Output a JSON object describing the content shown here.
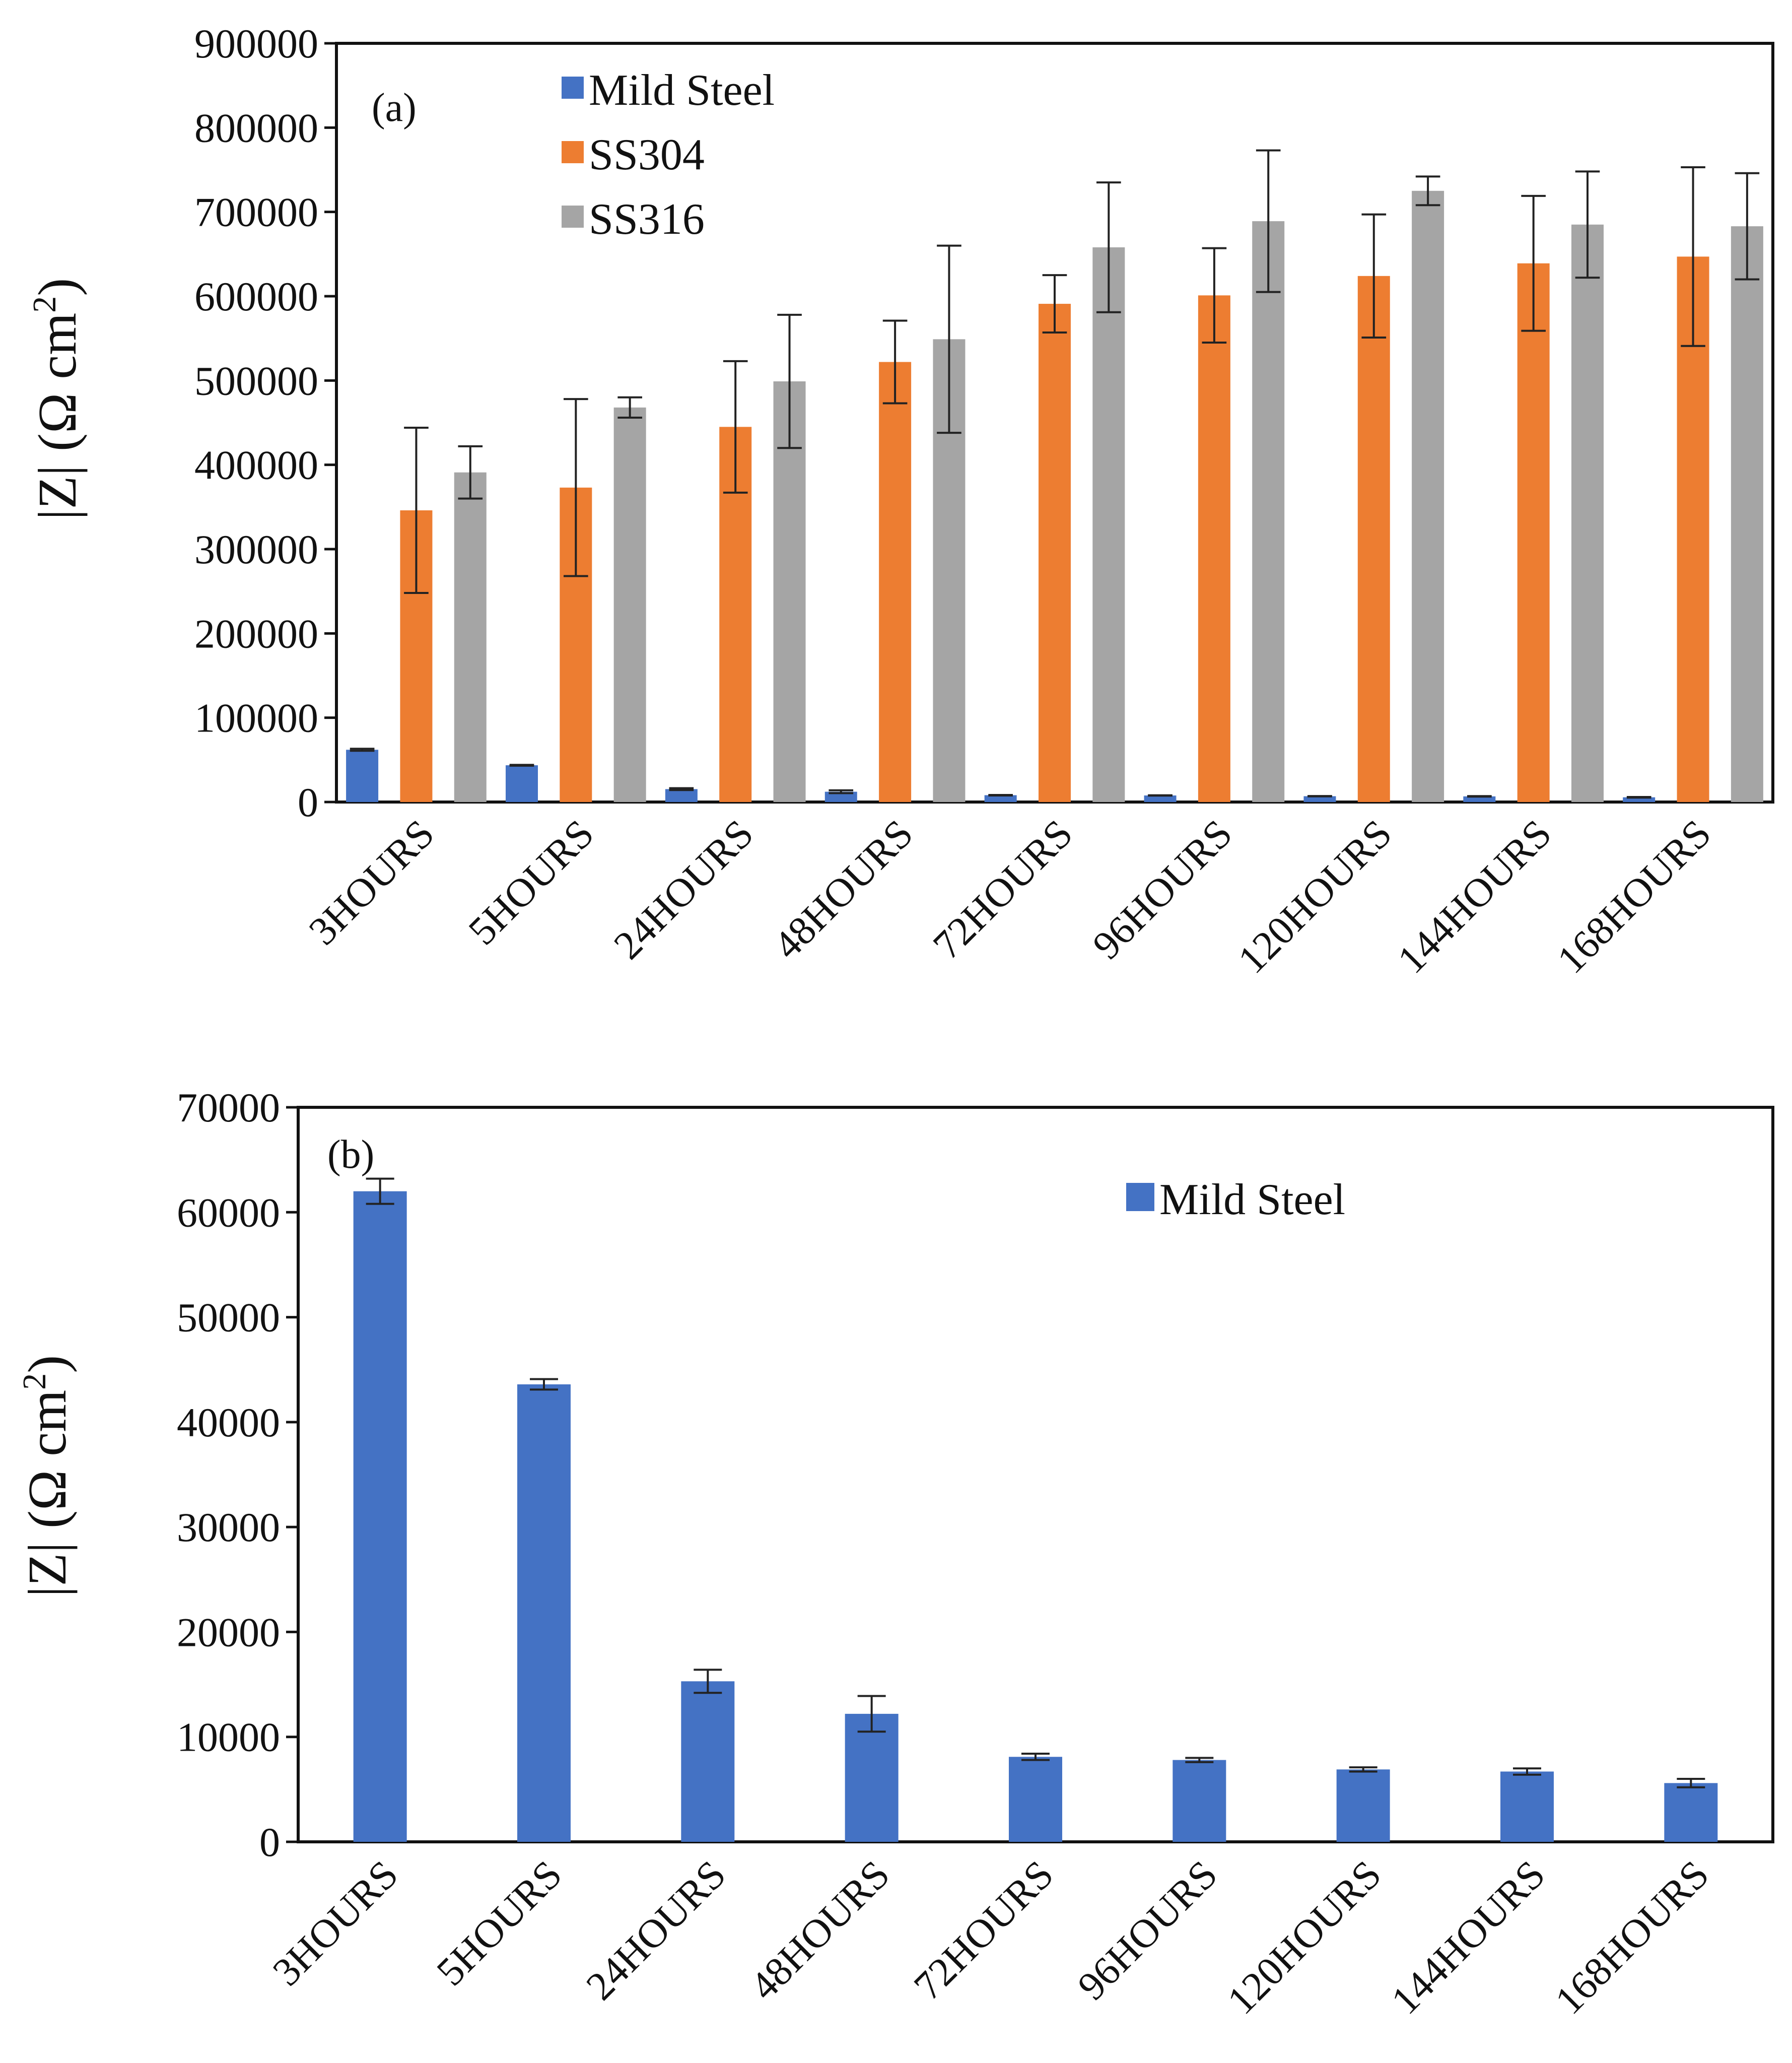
{
  "chart_data": [
    {
      "type": "bar",
      "panel_label": "(a)",
      "title": "",
      "xlabel": "",
      "ylabel": "|Z| (Ω cm²)",
      "ylabel_parts": {
        "pre": "|Z| (Ω cm",
        "sup": "2",
        "post": ")"
      },
      "ylim": [
        0,
        900000
      ],
      "yticks": [
        0,
        100000,
        200000,
        300000,
        400000,
        500000,
        600000,
        700000,
        800000,
        900000
      ],
      "ytick_labels": [
        "0",
        "100000",
        "200000",
        "300000",
        "400000",
        "500000",
        "600000",
        "700000",
        "800000",
        "900000"
      ],
      "grid": false,
      "legend_position": "top-left",
      "categories": [
        "3HOURS",
        "5HOURS",
        "24HOURS",
        "48HOURS",
        "72HOURS",
        "96HOURS",
        "120HOURS",
        "144HOURS",
        "168HOURS"
      ],
      "series": [
        {
          "name": "Mild Steel",
          "color": "#4472C4",
          "values": [
            62000,
            43600,
            15300,
            12200,
            8100,
            7800,
            6900,
            6700,
            5600
          ],
          "errors": [
            1200,
            500,
            1100,
            1700,
            300,
            200,
            200,
            300,
            400
          ]
        },
        {
          "name": "SS304",
          "color": "#ED7D31",
          "values": [
            346000,
            373000,
            445000,
            522000,
            591000,
            601000,
            624000,
            639000,
            647000
          ],
          "errors": [
            98000,
            105000,
            78000,
            49000,
            34000,
            56000,
            73000,
            80000,
            106000
          ]
        },
        {
          "name": "SS316",
          "color": "#A5A5A5",
          "values": [
            391000,
            468000,
            499000,
            549000,
            658000,
            689000,
            725000,
            685000,
            683000
          ],
          "errors": [
            31000,
            12000,
            79000,
            111000,
            77000,
            84000,
            17000,
            63000,
            63000
          ]
        }
      ]
    },
    {
      "type": "bar",
      "panel_label": "(b)",
      "title": "",
      "xlabel": "",
      "ylabel": "|Z| (Ω cm²)",
      "ylabel_parts": {
        "pre": "|Z| (Ω cm",
        "sup": "2",
        "post": ")"
      },
      "ylim": [
        0,
        70000
      ],
      "yticks": [
        0,
        10000,
        20000,
        30000,
        40000,
        50000,
        60000,
        70000
      ],
      "ytick_labels": [
        "0",
        "10000",
        "20000",
        "30000",
        "40000",
        "50000",
        "60000",
        "70000"
      ],
      "grid": false,
      "legend_position": "top-right",
      "categories": [
        "3HOURS",
        "5HOURS",
        "24HOURS",
        "48HOURS",
        "72HOURS",
        "96HOURS",
        "120HOURS",
        "144HOURS",
        "168HOURS"
      ],
      "series": [
        {
          "name": "Mild Steel",
          "color": "#4472C4",
          "values": [
            62000,
            43600,
            15300,
            12200,
            8100,
            7800,
            6900,
            6700,
            5600
          ],
          "errors": [
            1200,
            500,
            1100,
            1700,
            300,
            200,
            200,
            300,
            400
          ]
        }
      ]
    }
  ]
}
